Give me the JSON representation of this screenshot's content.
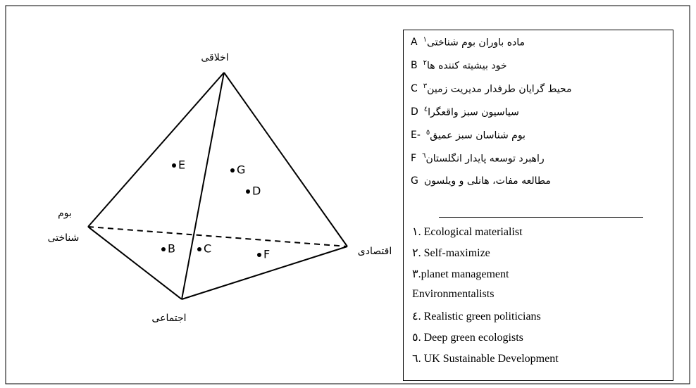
{
  "vertices": {
    "top": "اخلاقی",
    "left_line1": "بوم",
    "left_line2": "شناختی",
    "right": "اقتصادی",
    "bottom": "اجتماعی"
  },
  "points": [
    "E",
    "G",
    "D",
    "B",
    "C",
    "F"
  ],
  "legend": {
    "items": [
      {
        "letter": "A",
        "text": "ماده باوران بوم شناختی",
        "note": "١"
      },
      {
        "letter": "B",
        "text": "خود بیشیته کننده ها",
        "note": "٢"
      },
      {
        "letter": "C",
        "text": "محیط گرایان طرفدار مدیریت زمین",
        "note": "٣"
      },
      {
        "letter": "D",
        "text": "سیاسیون سبز واقعگرا",
        "note": "٤"
      },
      {
        "letter": "E-",
        "text": "بوم شناسان سبز عمیق",
        "note": "٥"
      },
      {
        "letter": "F",
        "text": "راهبرد توسعه پایدار انگلستان",
        "note": "٦"
      },
      {
        "letter": "G",
        "text": "مطالعه مفات، هانلی و ویلسون",
        "note": null
      }
    ],
    "notes": [
      "١. Ecological materialist",
      "٢. Self-maximize",
      "٣.planet management",
      "Environmentalists",
      "٤. Realistic green politicians",
      "٥. Deep green ecologists",
      "٦. UK Sustainable Development"
    ]
  }
}
